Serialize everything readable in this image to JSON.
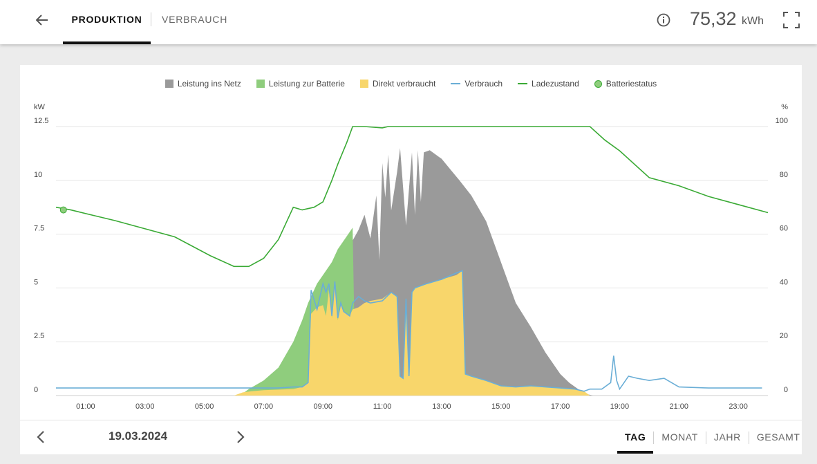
{
  "header": {
    "tabs": [
      {
        "label": "PRODUKTION",
        "active": true
      },
      {
        "label": "VERBRAUCH",
        "active": false
      }
    ],
    "total_value": "75,32",
    "total_unit": "kWh",
    "icons": {
      "back": "arrow-left-icon",
      "info": "info-icon",
      "fullscreen": "fullscreen-icon"
    }
  },
  "legend": [
    {
      "label": "Leistung ins Netz",
      "color": "#9a9a9a",
      "kind": "box"
    },
    {
      "label": "Leistung zur Batterie",
      "color": "#8fcd7d",
      "kind": "box"
    },
    {
      "label": "Direkt verbraucht",
      "color": "#f8d66b",
      "kind": "box"
    },
    {
      "label": "Verbrauch",
      "color": "#6aaed6",
      "kind": "line"
    },
    {
      "label": "Ladezustand",
      "color": "#3aaa35",
      "kind": "line"
    },
    {
      "label": "Batteriestatus",
      "color": "#8fcd7d",
      "kind": "dot"
    }
  ],
  "chart_data": {
    "type": "area",
    "y_left_unit": "kW",
    "y_right_unit": "%",
    "ylim_left": [
      0,
      12.5
    ],
    "ylim_right": [
      0,
      100
    ],
    "y_left_ticks": [
      "0",
      "2.5",
      "5",
      "7.5",
      "10",
      "12.5"
    ],
    "y_right_ticks": [
      "0",
      "20",
      "40",
      "60",
      "80",
      "100"
    ],
    "xlim": [
      0,
      24
    ],
    "x_ticks": [
      {
        "hour": 1,
        "label": "01:00"
      },
      {
        "hour": 3,
        "label": "03:00"
      },
      {
        "hour": 5,
        "label": "05:00"
      },
      {
        "hour": 7,
        "label": "07:00"
      },
      {
        "hour": 9,
        "label": "09:00"
      },
      {
        "hour": 11,
        "label": "11:00"
      },
      {
        "hour": 13,
        "label": "13:00"
      },
      {
        "hour": 15,
        "label": "15:00"
      },
      {
        "hour": 17,
        "label": "17:00"
      },
      {
        "hour": 19,
        "label": "19:00"
      },
      {
        "hour": 21,
        "label": "21:00"
      },
      {
        "hour": 23,
        "label": "23:00"
      }
    ],
    "series": [
      {
        "name": "Leistung ins Netz",
        "color": "#9a9a9a",
        "x": [
          0,
          6.2,
          7.0,
          8.0,
          8.5,
          9.0,
          9.5,
          9.8,
          10.0,
          10.2,
          10.4,
          10.6,
          10.8,
          10.9,
          11.0,
          11.1,
          11.2,
          11.3,
          11.5,
          11.6,
          11.8,
          12.0,
          12.1,
          12.2,
          12.3,
          12.4,
          12.6,
          12.8,
          13.0,
          13.3,
          13.6,
          14.0,
          14.5,
          15.0,
          15.5,
          16.0,
          16.5,
          17.0,
          17.3,
          17.6,
          17.8,
          18.1,
          24
        ],
        "values": [
          0,
          0,
          0,
          0,
          0,
          0,
          0,
          6.5,
          7.2,
          7.7,
          8.4,
          7.3,
          9.3,
          6.3,
          10.8,
          9.2,
          11.2,
          8.6,
          10.4,
          11.5,
          7.9,
          11.3,
          8.4,
          11.4,
          9.0,
          11.3,
          11.4,
          11.2,
          11.0,
          10.5,
          10.0,
          9.3,
          8.1,
          6.2,
          4.3,
          3.2,
          2.0,
          1.0,
          0.6,
          0.3,
          0.1,
          0,
          0
        ]
      },
      {
        "name": "Leistung zur Batterie",
        "color": "#8fcd7d",
        "x": [
          0,
          6.2,
          6.5,
          7.0,
          7.5,
          8.0,
          8.3,
          8.5,
          8.8,
          9.0,
          9.3,
          9.5,
          9.8,
          10.0,
          10.1,
          10.3,
          14.5,
          15.0,
          16.5,
          17.5,
          24
        ],
        "values": [
          0,
          0,
          0.3,
          0.7,
          1.3,
          2.5,
          3.5,
          4.3,
          5.2,
          5.6,
          6.2,
          6.8,
          7.4,
          7.8,
          0,
          0,
          0,
          0,
          0,
          0,
          0
        ]
      },
      {
        "name": "Direkt verbraucht",
        "color": "#f8d66b",
        "x": [
          0,
          6.0,
          6.3,
          6.6,
          7.0,
          8.0,
          8.3,
          8.5,
          8.6,
          8.8,
          9.0,
          9.1,
          9.2,
          9.3,
          9.4,
          9.5,
          9.6,
          9.7,
          9.8,
          9.9,
          10.0,
          10.2,
          10.4,
          10.6,
          11.0,
          11.3,
          11.5,
          11.6,
          11.7,
          11.8,
          11.9,
          12.0,
          12.1,
          12.5,
          13.0,
          13.5,
          13.7,
          13.8,
          14.0,
          14.5,
          15.0,
          15.5,
          16.0,
          16.5,
          17.0,
          17.5,
          17.8,
          18.0,
          24
        ],
        "values": [
          0,
          0,
          0.15,
          0.2,
          0.25,
          0.3,
          0.4,
          0.6,
          3.8,
          4.1,
          4.2,
          3.7,
          4.9,
          3.6,
          5.3,
          3.5,
          4.2,
          3.9,
          3.8,
          3.7,
          4.0,
          4.1,
          4.3,
          4.4,
          4.5,
          4.8,
          4.6,
          0.9,
          0.8,
          4.5,
          0.9,
          4.8,
          5.0,
          5.2,
          5.4,
          5.6,
          5.8,
          1.0,
          0.9,
          0.7,
          0.45,
          0.4,
          0.45,
          0.4,
          0.35,
          0.3,
          0.2,
          0,
          0
        ]
      },
      {
        "name": "Verbrauch",
        "color": "#6aaed6",
        "x": [
          0,
          1,
          2,
          3,
          4,
          5,
          6,
          6.5,
          7.0,
          7.5,
          8.0,
          8.3,
          8.5,
          8.6,
          8.8,
          9.0,
          9.1,
          9.2,
          9.3,
          9.4,
          9.5,
          9.6,
          9.7,
          9.8,
          9.9,
          10.0,
          10.2,
          10.4,
          10.6,
          11.0,
          11.3,
          11.5,
          11.6,
          11.7,
          11.8,
          11.9,
          12.0,
          12.1,
          12.5,
          13.0,
          13.5,
          13.7,
          13.8,
          14.0,
          14.5,
          15.0,
          15.5,
          16.0,
          16.5,
          17.0,
          17.5,
          17.8,
          18.0,
          18.4,
          18.7,
          18.8,
          18.9,
          19.0,
          19.3,
          19.6,
          20.0,
          20.5,
          21.0,
          22.0,
          23.0,
          23.8
        ],
        "values": [
          0.35,
          0.35,
          0.35,
          0.35,
          0.35,
          0.35,
          0.35,
          0.35,
          0.35,
          0.35,
          0.4,
          0.4,
          0.6,
          4.9,
          4.0,
          5.2,
          4.8,
          5.2,
          3.7,
          5.3,
          3.6,
          4.3,
          3.9,
          3.8,
          3.7,
          4.3,
          4.6,
          4.4,
          4.3,
          4.4,
          4.8,
          4.6,
          0.9,
          0.8,
          4.5,
          0.9,
          4.8,
          5.0,
          5.2,
          5.4,
          5.7,
          5.8,
          1.0,
          0.9,
          0.7,
          0.45,
          0.4,
          0.45,
          0.4,
          0.35,
          0.3,
          0.2,
          0.3,
          0.3,
          0.6,
          1.85,
          0.7,
          0.3,
          0.9,
          0.8,
          0.7,
          0.8,
          0.4,
          0.35,
          0.35,
          0.35
        ]
      },
      {
        "name": "Ladezustand",
        "color": "#3aaa35",
        "axis": "right",
        "x": [
          0,
          0.5,
          2.0,
          4.0,
          5.2,
          6.0,
          6.5,
          7.0,
          7.5,
          8.0,
          8.3,
          8.7,
          9.0,
          9.3,
          9.5,
          9.8,
          10.0,
          10.2,
          10.4,
          11.0,
          11.2,
          11.5,
          15.0,
          16.0,
          17.0,
          17.5,
          18.0,
          18.5,
          19.0,
          20.0,
          21.0,
          22.0,
          23.0,
          24.0
        ],
        "values": [
          70,
          69,
          65,
          59,
          52,
          48,
          48,
          51,
          58,
          70,
          69,
          70,
          72,
          80,
          86,
          94,
          100,
          100,
          100,
          99.5,
          100,
          100,
          100,
          100,
          100,
          100,
          100,
          95,
          91,
          81,
          78,
          74,
          71,
          68
        ]
      }
    ],
    "battery_status": {
      "x": 0.25,
      "value": 69
    }
  },
  "footer": {
    "date": "19.03.2024",
    "period_tabs": [
      {
        "label": "TAG",
        "active": true
      },
      {
        "label": "MONAT",
        "active": false
      },
      {
        "label": "JAHR",
        "active": false
      },
      {
        "label": "GESAMT",
        "active": false
      }
    ],
    "icons": {
      "prev": "chevron-left-icon",
      "next": "chevron-right-icon"
    }
  }
}
